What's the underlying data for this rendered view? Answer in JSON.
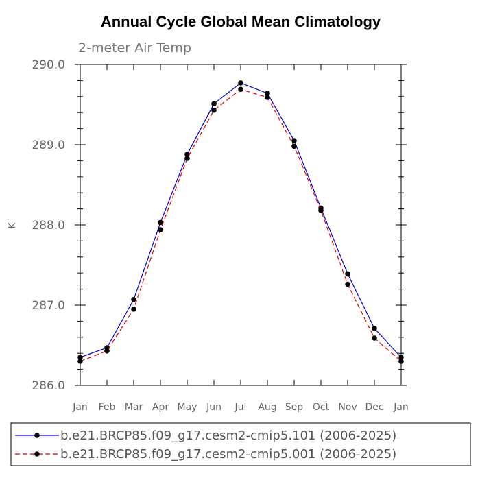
{
  "chart_data": {
    "type": "line",
    "title": "Annual Cycle Global Mean Climatology",
    "subtitle": "2-meter Air Temp",
    "ylabel": "K",
    "xlabel": "",
    "ylim": [
      286.0,
      290.0
    ],
    "yticks": [
      "286.0",
      "287.0",
      "288.0",
      "289.0",
      "290.0"
    ],
    "categories": [
      "Jan",
      "Feb",
      "Mar",
      "Apr",
      "May",
      "Jun",
      "Jul",
      "Aug",
      "Sep",
      "Oct",
      "Nov",
      "Dec",
      "Jan"
    ],
    "series": [
      {
        "name": "b.e21.BRCP85.f09_g17.cesm2-cmip5.101 (2006-2025)",
        "color": "#0000cc",
        "dash": "solid",
        "marker": "dot",
        "values": [
          286.35,
          286.47,
          287.07,
          288.03,
          288.88,
          289.51,
          289.77,
          289.64,
          289.05,
          288.21,
          287.39,
          286.71,
          286.35
        ]
      },
      {
        "name": "b.e21.BRCP85.f09_g17.cesm2-cmip5.001 (2006-2025)",
        "color": "#dd0000",
        "dash": "dashed",
        "marker": "dot",
        "values": [
          286.3,
          286.43,
          286.95,
          287.94,
          288.83,
          289.43,
          289.69,
          289.59,
          288.98,
          288.18,
          287.26,
          286.59,
          286.3
        ]
      }
    ],
    "legend_position": "bottom"
  }
}
